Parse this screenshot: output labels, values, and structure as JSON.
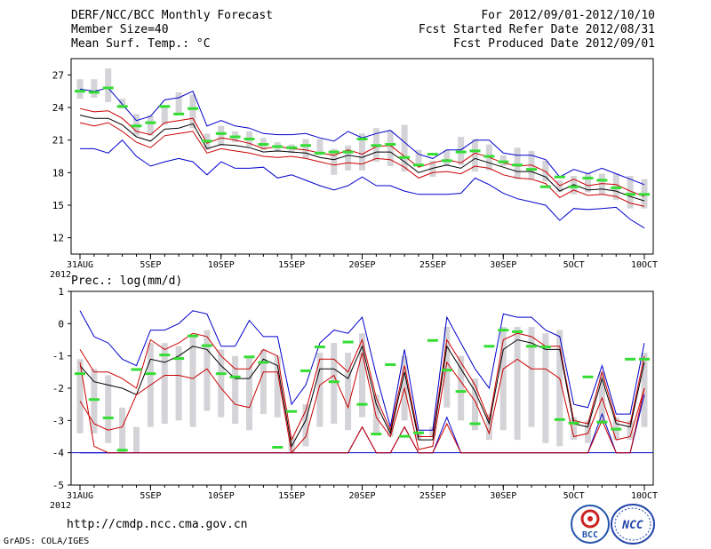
{
  "header": {
    "left": [
      "DERF/NCC/BCC Monthly Forecast",
      "Member Size=40",
      "Mean Surf. Temp.: °C"
    ],
    "right": [
      "For 2012/09/01-2012/10/10",
      "Fcst Started Refer Date 2012/08/31",
      "Fcst Produced Date 2012/09/01"
    ]
  },
  "footer": {
    "url": "http://cmdp.ncc.cma.gov.cn",
    "credit": "GrADS: COLA/IGES"
  },
  "logos": {
    "bcc_text": "BCC",
    "ncc_text": "NCC"
  },
  "colors": {
    "max": "#0000cc",
    "min": "#0000cc",
    "mean": "#000000",
    "spread": "#cc0000",
    "observed": "#33dd33",
    "box": "#d4d4d8"
  },
  "chart_data": [
    {
      "type": "box",
      "title": "Mean Surf. Temp.: °C",
      "x_tick_labels": [
        "31AUG",
        "5SEP",
        "10SEP",
        "15SEP",
        "20SEP",
        "25SEP",
        "30SEP",
        "5OCT",
        "10OCT"
      ],
      "x_tick_days": [
        0,
        5,
        10,
        15,
        20,
        25,
        30,
        35,
        40
      ],
      "x_year_label": "2012",
      "ylim": [
        10.5,
        28.5
      ],
      "yticks": [
        12,
        15,
        18,
        21,
        24,
        27
      ],
      "days": [
        0,
        1,
        2,
        3,
        4,
        5,
        6,
        7,
        8,
        9,
        10,
        11,
        12,
        13,
        14,
        15,
        16,
        17,
        18,
        19,
        20,
        21,
        22,
        23,
        24,
        25,
        26,
        27,
        28,
        29,
        30,
        31,
        32,
        33,
        34,
        35,
        36,
        37,
        38,
        39,
        40
      ],
      "series": [
        {
          "name": "max",
          "values": [
            25.7,
            25.5,
            25.8,
            24.3,
            22.8,
            23.2,
            24.7,
            24.9,
            25.5,
            22.3,
            22.8,
            22.3,
            22.1,
            21.6,
            21.5,
            21.5,
            21.6,
            21.2,
            20.9,
            21.8,
            21.2,
            21.6,
            21.9,
            20.8,
            19.7,
            19.3,
            20.1,
            20.1,
            21.0,
            21.0,
            19.8,
            19.6,
            19.6,
            19.2,
            17.6,
            18.3,
            17.9,
            18.4,
            17.9,
            17.4,
            16.9
          ]
        },
        {
          "name": "upper",
          "values": [
            23.9,
            23.6,
            23.7,
            23.0,
            21.8,
            21.5,
            22.6,
            22.8,
            23.0,
            20.7,
            21.2,
            21.0,
            20.7,
            20.2,
            20.4,
            20.2,
            20.1,
            19.8,
            19.6,
            20.1,
            19.7,
            20.4,
            20.5,
            19.5,
            18.5,
            18.9,
            19.2,
            18.9,
            19.8,
            19.4,
            18.9,
            18.6,
            18.7,
            18.1,
            16.8,
            17.4,
            16.8,
            17.0,
            16.9,
            16.3,
            15.8
          ]
        },
        {
          "name": "mean",
          "values": [
            23.3,
            23.0,
            23.0,
            22.4,
            21.3,
            20.9,
            22.0,
            22.1,
            22.5,
            20.2,
            20.6,
            20.5,
            20.3,
            19.9,
            20.0,
            19.9,
            19.8,
            19.4,
            19.2,
            19.6,
            19.4,
            19.9,
            19.9,
            19.0,
            18.0,
            18.4,
            18.7,
            18.4,
            19.3,
            18.9,
            18.5,
            18.1,
            18.1,
            17.6,
            16.3,
            16.9,
            16.4,
            16.5,
            16.3,
            15.8,
            15.4
          ]
        },
        {
          "name": "lower",
          "values": [
            22.6,
            22.3,
            22.6,
            21.8,
            20.8,
            20.3,
            21.4,
            21.6,
            21.8,
            19.8,
            20.2,
            20.0,
            19.8,
            19.5,
            19.4,
            19.5,
            19.3,
            19.0,
            18.7,
            18.9,
            18.8,
            19.3,
            19.2,
            18.5,
            17.5,
            18.0,
            18.1,
            17.9,
            18.6,
            18.4,
            17.8,
            17.5,
            17.4,
            17.0,
            15.7,
            16.4,
            15.9,
            16.0,
            15.8,
            15.2,
            14.9
          ]
        },
        {
          "name": "min",
          "values": [
            20.2,
            20.2,
            19.8,
            21.0,
            19.5,
            18.6,
            19.0,
            19.3,
            19.0,
            17.8,
            19.0,
            18.4,
            18.4,
            18.5,
            17.5,
            17.8,
            17.3,
            16.8,
            16.4,
            16.8,
            17.6,
            16.8,
            16.8,
            16.3,
            16.0,
            16.0,
            16.0,
            16.1,
            17.5,
            16.9,
            16.1,
            15.6,
            15.3,
            15.0,
            13.6,
            14.7,
            14.6,
            14.7,
            14.8,
            13.7,
            12.9
          ]
        }
      ],
      "box_low": [
        24.8,
        24.9,
        24.5,
        23.9,
        21.4,
        21.4,
        22.4,
        23.3,
        22.1,
        20.1,
        20.5,
        20.8,
        20.4,
        20.1,
        19.9,
        19.8,
        19.3,
        19.6,
        17.8,
        18.2,
        18.2,
        19.0,
        18.6,
        18.1,
        18.6,
        17.6,
        18.6,
        18.7,
        18.1,
        18.2,
        18.6,
        17.4,
        17.4,
        17.2,
        16.2,
        16.0,
        16.2,
        16.0,
        15.5,
        14.7,
        14.7
      ],
      "box_high": [
        26.6,
        26.6,
        27.6,
        24.8,
        23.4,
        23.3,
        24.2,
        25.4,
        25.2,
        21.6,
        22.3,
        21.8,
        21.8,
        21.2,
        20.8,
        20.6,
        21.1,
        21.1,
        20.2,
        20.5,
        21.6,
        22.1,
        21.8,
        22.4,
        20.1,
        19.1,
        20.1,
        21.3,
        21.1,
        20.6,
        19.6,
        20.3,
        20.0,
        19.1,
        17.3,
        17.7,
        18.0,
        17.9,
        17.9,
        17.7,
        17.4
      ],
      "observed": [
        25.5,
        25.4,
        25.8,
        24.1,
        22.3,
        22.6,
        24.1,
        23.4,
        23.9,
        20.9,
        21.6,
        21.3,
        21.1,
        20.6,
        20.4,
        20.3,
        20.5,
        19.8,
        19.9,
        19.9,
        21.1,
        20.5,
        20.6,
        19.4,
        18.7,
        19.7,
        19.1,
        19.9,
        20.0,
        19.5,
        19.0,
        18.7,
        18.3,
        16.7,
        17.6,
        16.7,
        17.5,
        17.3,
        16.6,
        16.0,
        16.0
      ]
    },
    {
      "type": "box",
      "title": "Prec.: log(mm/d)",
      "x_tick_labels": [
        "31AUG",
        "5SEP",
        "10SEP",
        "15SEP",
        "20SEP",
        "25SEP",
        "30SEP",
        "5OCT",
        "10OCT"
      ],
      "x_tick_days": [
        0,
        5,
        10,
        15,
        20,
        25,
        30,
        35,
        40
      ],
      "x_year_label": "2012",
      "ylim": [
        -5,
        1
      ],
      "yticks": [
        -5,
        -4,
        -3,
        -2,
        -1,
        0,
        1
      ],
      "days": [
        0,
        1,
        2,
        3,
        4,
        5,
        6,
        7,
        8,
        9,
        10,
        11,
        12,
        13,
        14,
        15,
        16,
        17,
        18,
        19,
        20,
        21,
        22,
        23,
        24,
        25,
        26,
        27,
        28,
        29,
        30,
        31,
        32,
        33,
        34,
        35,
        36,
        37,
        38,
        39,
        40
      ],
      "series": [
        {
          "name": "max",
          "values": [
            0.4,
            -0.4,
            -0.6,
            -1.1,
            -1.3,
            -0.2,
            -0.2,
            0.0,
            0.4,
            0.3,
            -0.7,
            -0.7,
            0.1,
            -0.4,
            -0.4,
            -2.5,
            -1.9,
            -0.6,
            -0.2,
            -0.3,
            0.2,
            -1.6,
            -3.2,
            -0.8,
            -3.3,
            -3.3,
            0.2,
            -0.6,
            -1.4,
            -2.0,
            0.3,
            0.2,
            0.2,
            -0.2,
            -0.4,
            -2.5,
            -2.6,
            -1.3,
            -2.8,
            -2.8,
            -0.6
          ]
        },
        {
          "name": "upper",
          "values": [
            -0.8,
            -1.5,
            -1.5,
            -1.7,
            -2.0,
            -0.5,
            -0.8,
            -0.6,
            -0.3,
            -0.4,
            -1.0,
            -1.4,
            -1.4,
            -0.8,
            -1.0,
            -3.6,
            -2.7,
            -1.1,
            -1.1,
            -1.5,
            -0.5,
            -2.3,
            -3.3,
            -1.3,
            -3.5,
            -3.5,
            -0.5,
            -1.2,
            -1.9,
            -3.0,
            -0.5,
            -0.3,
            -0.4,
            -0.7,
            -0.7,
            -3.0,
            -3.1,
            -1.5,
            -3.0,
            -3.1,
            -1.0
          ]
        },
        {
          "name": "mean",
          "values": [
            -1.3,
            -1.8,
            -1.9,
            -2.0,
            -2.2,
            -1.1,
            -1.2,
            -1.0,
            -0.7,
            -0.8,
            -1.3,
            -1.7,
            -1.7,
            -1.1,
            -1.3,
            -3.8,
            -3.0,
            -1.4,
            -1.4,
            -1.7,
            -0.7,
            -2.5,
            -3.4,
            -1.5,
            -3.6,
            -3.6,
            -0.7,
            -1.4,
            -2.1,
            -3.1,
            -0.8,
            -0.5,
            -0.6,
            -0.8,
            -0.8,
            -3.1,
            -3.2,
            -1.7,
            -3.1,
            -3.2,
            -1.2
          ]
        },
        {
          "name": "lower",
          "values": [
            -2.4,
            -3.1,
            -3.3,
            -3.2,
            -2.2,
            -1.9,
            -1.6,
            -1.6,
            -1.7,
            -1.4,
            -2.0,
            -2.5,
            -2.6,
            -1.5,
            -1.5,
            -4.0,
            -3.5,
            -1.9,
            -1.6,
            -2.6,
            -0.9,
            -2.9,
            -3.5,
            -2.0,
            -3.9,
            -3.8,
            -1.2,
            -1.8,
            -2.4,
            -3.4,
            -1.4,
            -1.1,
            -1.4,
            -1.4,
            -1.7,
            -3.5,
            -3.4,
            -2.3,
            -3.6,
            -3.5,
            -2.0
          ]
        },
        {
          "name": "min",
          "values": [
            -4.0,
            -4.0,
            -4.0,
            -4.0,
            -4.0,
            -4.0,
            -4.0,
            -4.0,
            -4.0,
            -4.0,
            -4.0,
            -4.0,
            -4.0,
            -4.0,
            -4.0,
            -4.0,
            -4.0,
            -4.0,
            -4.0,
            -4.0,
            -3.2,
            -4.0,
            -4.0,
            -3.2,
            -4.0,
            -4.0,
            -2.9,
            -4.0,
            -4.0,
            -4.0,
            -4.0,
            -4.0,
            -4.0,
            -4.0,
            -4.0,
            -4.0,
            -4.0,
            -2.8,
            -4.0,
            -4.0,
            -2.2
          ]
        },
        {
          "name": "lower_min",
          "values": [
            -1.2,
            -3.8,
            -4.0,
            -4.0,
            -4.0,
            -4.0,
            -4.0,
            -4.0,
            -4.0,
            -4.0,
            -4.0,
            -4.0,
            -4.0,
            -4.0,
            -4.0,
            -4.0,
            -4.0,
            -4.0,
            -4.0,
            -4.0,
            -3.2,
            -4.0,
            -4.0,
            -3.2,
            -4.0,
            -4.0,
            -3.1,
            -4.0,
            -4.0,
            -4.0,
            -4.0,
            -4.0,
            -4.0,
            -4.0,
            -4.0,
            -4.0,
            -4.0,
            -3.0,
            -4.0,
            -4.0,
            -2.0
          ]
        }
      ],
      "box_low": [
        -3.4,
        -3.4,
        -3.7,
        -4.0,
        -4.0,
        -3.2,
        -3.1,
        -3.0,
        -3.2,
        -2.7,
        -2.9,
        -3.1,
        -3.3,
        -2.8,
        -2.9,
        -4.0,
        -3.8,
        -3.2,
        -3.1,
        -3.3,
        -2.9,
        -3.4,
        -3.5,
        -3.0,
        -3.6,
        -3.5,
        -2.6,
        -3.0,
        -3.3,
        -3.6,
        -3.3,
        -3.6,
        -3.2,
        -3.7,
        -3.8,
        -3.6,
        -3.7,
        -3.1,
        -3.6,
        -3.6,
        -3.2
      ],
      "box_high": [
        -1.1,
        -1.4,
        -1.6,
        -2.6,
        -3.2,
        -0.6,
        -0.6,
        -0.7,
        -0.4,
        -0.2,
        -0.8,
        -1.0,
        -1.0,
        -0.8,
        -1.0,
        -3.5,
        -2.5,
        -0.9,
        -0.6,
        -0.9,
        -0.3,
        -2.2,
        -3.2,
        -1.0,
        -3.4,
        -3.2,
        -0.1,
        -1.0,
        -1.7,
        -2.8,
        -0.1,
        -0.1,
        -0.1,
        -0.3,
        -0.2,
        -2.9,
        -3.0,
        -1.5,
        -2.9,
        -3.0,
        -0.9
      ],
      "observed": [
        -1.55,
        -2.35,
        -2.92,
        -3.92,
        -1.42,
        -1.55,
        -0.97,
        -1.08,
        -0.38,
        -0.68,
        -1.55,
        -1.65,
        -1.03,
        -1.2,
        -3.83,
        -2.72,
        -1.46,
        -0.72,
        -1.8,
        -0.57,
        -2.5,
        -3.42,
        -1.27,
        -3.49,
        -3.38,
        -0.52,
        -1.44,
        -2.1,
        -3.1,
        -0.7,
        -0.2,
        -0.25,
        -0.7,
        -0.72,
        -2.97,
        -3.08,
        -1.65,
        -3.05,
        -3.27,
        -1.1,
        -1.1
      ]
    }
  ]
}
